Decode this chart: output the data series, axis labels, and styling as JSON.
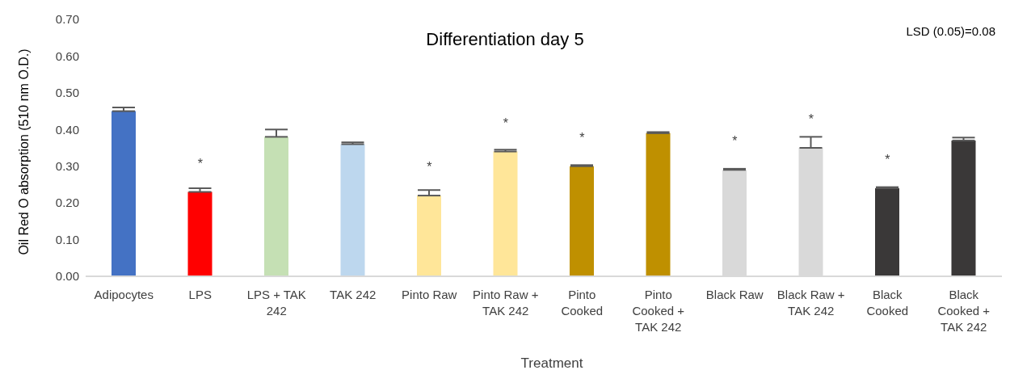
{
  "chart_data": {
    "type": "bar",
    "title": "Differentiation day 5",
    "xlabel": "Treatment",
    "ylabel": "Oil Red O absorption (510 nm O.D.)",
    "categories": [
      "Adipocytes",
      "LPS",
      "LPS + TAK 242",
      "TAK 242",
      "Pinto Raw",
      "Pinto Raw + TAK 242",
      "Pinto Cooked",
      "Pinto Cooked + TAK 242",
      "Black Raw",
      "Black Raw + TAK 242",
      "Black Cooked",
      "Black Cooked + TAK 242"
    ],
    "values": [
      0.45,
      0.23,
      0.38,
      0.36,
      0.22,
      0.34,
      0.3,
      0.39,
      0.29,
      0.35,
      0.24,
      0.37
    ],
    "errors": [
      [
        0.45,
        0.46
      ],
      [
        0.23,
        0.24
      ],
      [
        0.38,
        0.4
      ],
      [
        0.36,
        0.365
      ],
      [
        0.22,
        0.235
      ],
      [
        0.34,
        0.345
      ],
      [
        0.3,
        0.303
      ],
      [
        0.39,
        0.393
      ],
      [
        0.29,
        0.293
      ],
      [
        0.35,
        0.38
      ],
      [
        0.24,
        0.243
      ],
      [
        0.37,
        0.378
      ]
    ],
    "colors": [
      "#4472c4",
      "#ff0000",
      "#c5e0b4",
      "#bdd7ee",
      "#ffe699",
      "#ffe699",
      "#bf9000",
      "#bf9000",
      "#d9d9d9",
      "#d9d9d9",
      "#3a3838",
      "#3a3838"
    ],
    "ylim": [
      0,
      0.7
    ],
    "yticks": [
      {
        "value": 0,
        "label": "0.00"
      },
      {
        "value": 0.1,
        "label": "0.10"
      },
      {
        "value": 0.2,
        "label": "0.20"
      },
      {
        "value": 0.3,
        "label": "0.30"
      },
      {
        "value": 0.4,
        "label": "0.40"
      },
      {
        "value": 0.5,
        "label": "0.50"
      },
      {
        "value": 0.6,
        "label": "0.60"
      },
      {
        "value": 0.7,
        "label": "0.70"
      }
    ],
    "grid": false,
    "annotations": [
      "LSD (0.05)=0.08",
      {
        "text": "*",
        "x": "LPS",
        "y": 0.23
      },
      {
        "text": "*",
        "x": "Pinto Raw",
        "y": 0.22
      },
      {
        "text": "*",
        "x": "Pinto Raw + TAK 242",
        "y": 0.34
      },
      {
        "text": "*",
        "x": "Pinto Cooked",
        "y": 0.3
      },
      {
        "text": "*",
        "x": "Black Raw",
        "y": 0.29
      },
      {
        "text": "*",
        "x": "Black Raw + TAK 242",
        "y": 0.35
      },
      {
        "text": "*",
        "x": "Black Cooked",
        "y": 0.24
      }
    ]
  }
}
